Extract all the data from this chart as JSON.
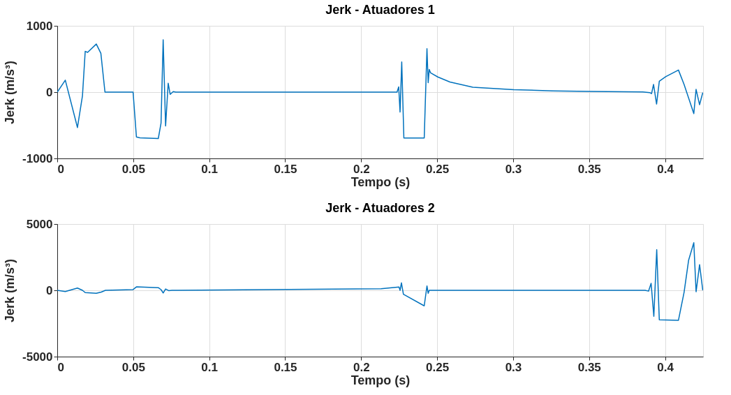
{
  "chart_data": [
    {
      "type": "line",
      "title": "Jerk - Atuadores 1",
      "xlabel": "Tempo (s)",
      "ylabel": "Jerk (m/s³)",
      "xlim": [
        0,
        0.425
      ],
      "xticks": [
        0,
        0.05,
        0.1,
        0.15,
        0.2,
        0.25,
        0.3,
        0.35,
        0.4
      ],
      "ylim": [
        -1000,
        1000
      ],
      "yticks": [
        -1000,
        0,
        1000
      ],
      "grid": true,
      "series": [
        {
          "color": "#0072bd",
          "x": [
            0,
            0.0053,
            0.0133,
            0.0166,
            0.0184,
            0.02,
            0.0257,
            0.0287,
            0.0314,
            0.0499,
            0.0521,
            0.0544,
            0.0665,
            0.0683,
            0.0697,
            0.0713,
            0.073,
            0.0743,
            0.0763,
            0.078,
            0.2236,
            0.2247,
            0.2256,
            0.2267,
            0.2281,
            0.2415,
            0.2433,
            0.2441,
            0.2448,
            0.2457,
            0.2504,
            0.2584,
            0.2735,
            0.3004,
            0.326,
            0.3505,
            0.3853,
            0.3899,
            0.3911,
            0.3924,
            0.3944,
            0.3962,
            0.4004,
            0.4088,
            0.4125,
            0.4189,
            0.4204,
            0.4227,
            0.4248
          ],
          "values": [
            0,
            180,
            -534,
            -53,
            615,
            600,
            725,
            586,
            0,
            0,
            -676,
            -690,
            -700,
            -466,
            789,
            -510,
            135,
            -34,
            8,
            0,
            0,
            79,
            -301,
            454,
            -692,
            -692,
            654,
            142,
            341,
            290,
            229,
            153,
            74,
            37,
            19,
            11,
            3,
            -7,
            -22,
            116,
            -180,
            165,
            233,
            333,
            116,
            -323,
            41,
            -190,
            -7
          ]
        }
      ]
    },
    {
      "type": "line",
      "title": "Jerk - Atuadores 2",
      "xlabel": "Tempo (s)",
      "ylabel": "Jerk (m/s³)",
      "xlim": [
        0,
        0.425
      ],
      "xticks": [
        0,
        0.05,
        0.1,
        0.15,
        0.2,
        0.25,
        0.3,
        0.35,
        0.4
      ],
      "ylim": [
        -5000,
        5000
      ],
      "yticks": [
        -5000,
        0,
        5000
      ],
      "grid": true,
      "series": [
        {
          "color": "#0072bd",
          "x": [
            0,
            0.0053,
            0.0133,
            0.0166,
            0.0184,
            0.0257,
            0.029,
            0.0317,
            0.0499,
            0.0521,
            0.0665,
            0.0684,
            0.0697,
            0.0713,
            0.0733,
            0.0755,
            0.2131,
            0.2249,
            0.2256,
            0.2265,
            0.2278,
            0.2415,
            0.2433,
            0.2441,
            0.2448,
            0.2457,
            0.3868,
            0.3891,
            0.3908,
            0.3926,
            0.3945,
            0.3962,
            0.4088,
            0.4125,
            0.4155,
            0.4189,
            0.4204,
            0.4227,
            0.4248
          ],
          "values": [
            0,
            -94,
            170,
            0,
            -170,
            -220,
            -130,
            0,
            56,
            260,
            200,
            40,
            -200,
            100,
            -20,
            0,
            120,
            250,
            0,
            560,
            -300,
            -1170,
            330,
            -230,
            0,
            0,
            0,
            -60,
            530,
            -1960,
            3070,
            -2225,
            -2260,
            -150,
            2280,
            3590,
            -110,
            1940,
            0
          ]
        }
      ]
    }
  ]
}
